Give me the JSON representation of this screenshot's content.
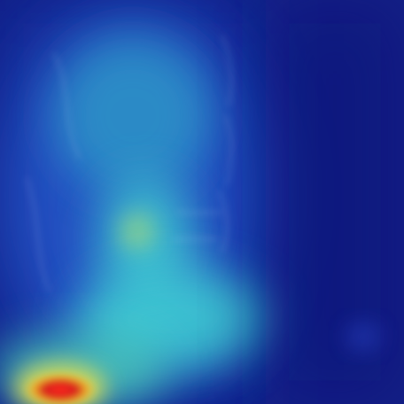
{
  "image": {
    "kind": "heatmap-overlay",
    "subject": "x-ray",
    "colormap": "jet",
    "colors": {
      "background_blue": "#101e86",
      "deep_blue": "#0a167a",
      "mid_blue": "#2a63d6",
      "cyan": "#3fd2d4",
      "teal": "#2a9fbf",
      "yellow": "#d7e35a",
      "red": "#d51f1f"
    }
  }
}
